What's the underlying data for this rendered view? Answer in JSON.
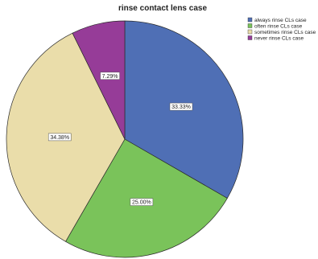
{
  "chart_data": {
    "type": "pie",
    "title": "rinse contact lens case",
    "legend_position": "top-right",
    "slices": [
      {
        "label": "always rinse CLs case",
        "value": 33.33,
        "data_label": "33.33%",
        "color": "#4F6FB5"
      },
      {
        "label": "often rinse CLs case",
        "value": 25.0,
        "data_label": "25.00%",
        "color": "#7AC35A"
      },
      {
        "label": "sometimes rinse CLs case",
        "value": 34.38,
        "data_label": "34.38%",
        "color": "#EADDAA"
      },
      {
        "label": "never rinse CLs case",
        "value": 7.29,
        "data_label": "7.29%",
        "color": "#963C98"
      }
    ]
  }
}
